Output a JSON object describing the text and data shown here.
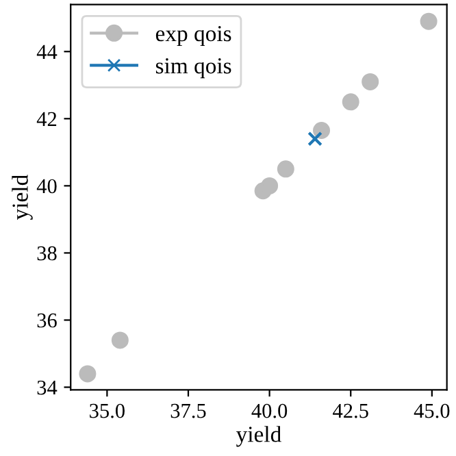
{
  "chart_data": {
    "type": "scatter",
    "xlabel": "yield",
    "ylabel": "yield",
    "xlim": [
      33.88,
      45.46
    ],
    "ylim": [
      33.92,
      45.4
    ],
    "xticks": [
      {
        "value": 35,
        "label": "35.0"
      },
      {
        "value": 37.5,
        "label": "37.5"
      },
      {
        "value": 40,
        "label": "40.0"
      },
      {
        "value": 42.5,
        "label": "42.5"
      },
      {
        "value": 45,
        "label": "45.0"
      }
    ],
    "yticks": [
      34,
      36,
      38,
      40,
      42,
      44
    ],
    "legend": "top left",
    "grid": false,
    "series": [
      {
        "name": "exp qois",
        "color": "#bbbbbb",
        "marker": "circle",
        "x": [
          34.4,
          35.4,
          39.8,
          40.0,
          40.5,
          41.6,
          42.5,
          43.1,
          44.9
        ],
        "values": [
          34.4,
          35.4,
          39.85,
          40.0,
          40.5,
          41.65,
          42.5,
          43.1,
          44.9
        ]
      },
      {
        "name": "sim qois",
        "color": "#1f77b4",
        "marker": "cross",
        "x": [
          41.4
        ],
        "values": [
          41.4
        ]
      }
    ]
  }
}
